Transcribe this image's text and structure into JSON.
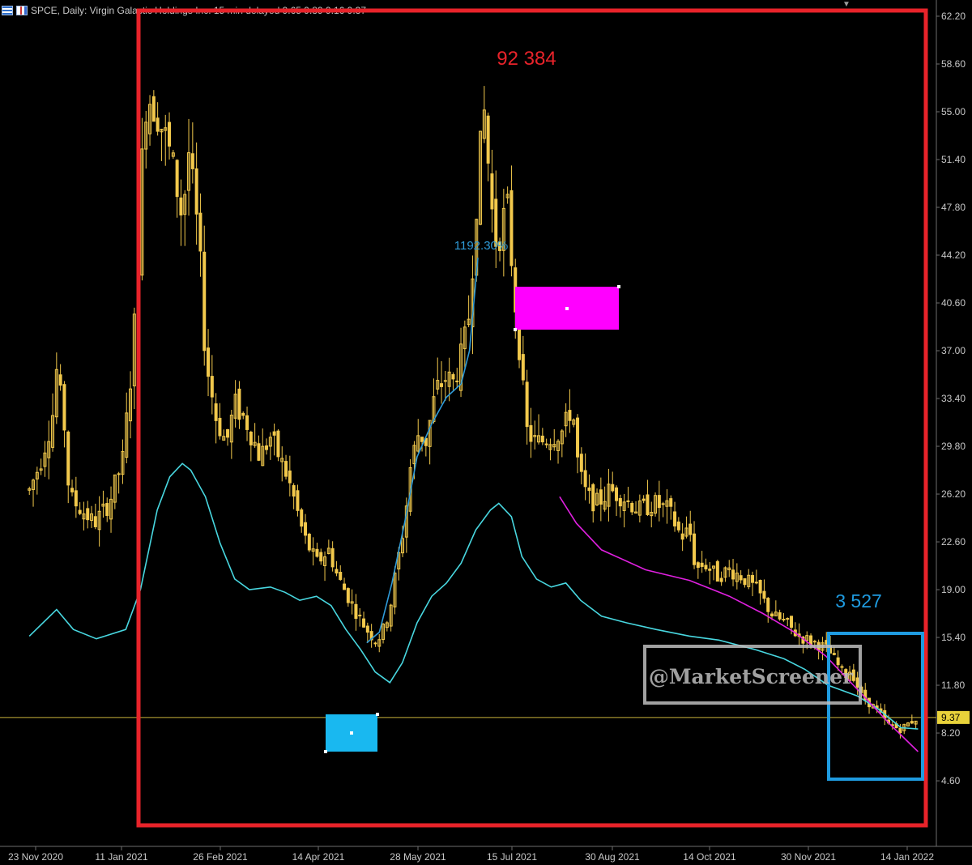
{
  "header": {
    "title": "SPCE, Daily:  Virgin Galactic Holdings Inc. 15 min delayed  9.65 9.89 9.16 9.37"
  },
  "colors": {
    "background": "#000000",
    "candle": "#f2c94c",
    "cyan_line": "#48d7e0",
    "blue_line": "#2f9bd8",
    "magenta_line": "#e020e0",
    "red_box": "#e8232a",
    "blue_box": "#1f9be0",
    "magenta_rect": "#ff00ff",
    "cyan_rect": "#19b8f0",
    "price_line": "#c9b23a",
    "axis_text": "#c8c8c8",
    "watermark": "#bdbdbd"
  },
  "annotations": {
    "red_box_label": "92 384",
    "blue_box_label": "3 527",
    "percent_label": "1192.30%",
    "watermark": "@MarketScreener"
  },
  "chart_data": {
    "type": "candlestick",
    "title": "SPCE, Daily",
    "xlabel": "",
    "ylabel": "",
    "ylim": [
      3.2,
      62.2
    ],
    "grid": false,
    "y_ticks": [
      "62.20",
      "58.60",
      "55.00",
      "51.40",
      "47.80",
      "44.20",
      "40.60",
      "37.00",
      "33.40",
      "29.80",
      "26.20",
      "22.60",
      "19.00",
      "15.40",
      "11.80",
      "8.20",
      "4.60"
    ],
    "x_ticks": [
      "23 Nov 2020",
      "11 Jan 2021",
      "26 Feb 2021",
      "14 Apr 2021",
      "28 May 2021",
      "15 Jul 2021",
      "30 Aug 2021",
      "14 Oct 2021",
      "30 Nov 2021",
      "14 Jan 2022"
    ],
    "last_price": "9.37",
    "close_path": [
      [
        "2020-11-20",
        26.5
      ],
      [
        "2020-11-25",
        28.5
      ],
      [
        "2020-12-01",
        32.0
      ],
      [
        "2020-12-03",
        35.5
      ],
      [
        "2020-12-07",
        31.0
      ],
      [
        "2020-12-09",
        26.0
      ],
      [
        "2020-12-15",
        25.0
      ],
      [
        "2020-12-21",
        24.0
      ],
      [
        "2020-12-28",
        25.5
      ],
      [
        "2021-01-04",
        29.0
      ],
      [
        "2021-01-06",
        33.0
      ],
      [
        "2021-01-08",
        36.0
      ],
      [
        "2021-01-11",
        44.0
      ],
      [
        "2021-01-13",
        52.0
      ],
      [
        "2021-01-15",
        56.5
      ],
      [
        "2021-01-20",
        55.0
      ],
      [
        "2021-01-25",
        52.5
      ],
      [
        "2021-01-28",
        50.5
      ],
      [
        "2021-02-01",
        47.0
      ],
      [
        "2021-02-04",
        52.0
      ],
      [
        "2021-02-09",
        45.0
      ],
      [
        "2021-02-12",
        36.5
      ],
      [
        "2021-02-17",
        32.0
      ],
      [
        "2021-02-22",
        30.0
      ],
      [
        "2021-02-26",
        33.0
      ],
      [
        "2021-03-04",
        31.5
      ],
      [
        "2021-03-10",
        29.0
      ],
      [
        "2021-03-15",
        30.5
      ],
      [
        "2021-03-22",
        28.0
      ],
      [
        "2021-03-26",
        26.0
      ],
      [
        "2021-03-31",
        23.0
      ],
      [
        "2021-04-06",
        21.0
      ],
      [
        "2021-04-12",
        22.0
      ],
      [
        "2021-04-16",
        20.0
      ],
      [
        "2021-04-21",
        18.5
      ],
      [
        "2021-04-26",
        17.0
      ],
      [
        "2021-04-30",
        16.0
      ],
      [
        "2021-05-04",
        15.2
      ],
      [
        "2021-05-07",
        15.6
      ],
      [
        "2021-05-11",
        17.5
      ],
      [
        "2021-05-14",
        20.5
      ],
      [
        "2021-05-18",
        24.0
      ],
      [
        "2021-05-21",
        28.5
      ],
      [
        "2021-05-25",
        31.0
      ],
      [
        "2021-05-28",
        30.0
      ],
      [
        "2021-06-02",
        34.0
      ],
      [
        "2021-06-07",
        35.0
      ],
      [
        "2021-06-10",
        34.5
      ],
      [
        "2021-06-15",
        37.0
      ],
      [
        "2021-06-18",
        40.0
      ],
      [
        "2021-06-22",
        50.0
      ],
      [
        "2021-06-25",
        55.0
      ],
      [
        "2021-06-29",
        47.0
      ],
      [
        "2021-07-01",
        45.0
      ],
      [
        "2021-07-06",
        48.0
      ],
      [
        "2021-07-09",
        42.0
      ],
      [
        "2021-07-12",
        37.0
      ],
      [
        "2021-07-15",
        31.0
      ],
      [
        "2021-07-20",
        30.0
      ],
      [
        "2021-07-26",
        30.5
      ],
      [
        "2021-08-02",
        31.0
      ],
      [
        "2021-08-06",
        33.0
      ],
      [
        "2021-08-09",
        28.0
      ],
      [
        "2021-08-13",
        26.0
      ],
      [
        "2021-08-18",
        25.5
      ],
      [
        "2021-08-24",
        26.5
      ],
      [
        "2021-08-30",
        26.0
      ],
      [
        "2021-09-07",
        25.0
      ],
      [
        "2021-09-14",
        25.5
      ],
      [
        "2021-09-21",
        25.0
      ],
      [
        "2021-09-27",
        23.0
      ],
      [
        "2021-10-01",
        23.5
      ],
      [
        "2021-10-04",
        20.5
      ],
      [
        "2021-10-08",
        21.0
      ],
      [
        "2021-10-14",
        20.0
      ],
      [
        "2021-10-20",
        20.5
      ],
      [
        "2021-10-26",
        20.0
      ],
      [
        "2021-11-02",
        19.0
      ],
      [
        "2021-11-10",
        17.0
      ],
      [
        "2021-11-16",
        16.5
      ],
      [
        "2021-11-22",
        15.5
      ],
      [
        "2021-11-30",
        15.0
      ],
      [
        "2021-12-06",
        14.5
      ],
      [
        "2021-12-10",
        13.5
      ],
      [
        "2021-12-14",
        12.5
      ],
      [
        "2021-12-17",
        13.0
      ],
      [
        "2021-12-22",
        11.0
      ],
      [
        "2021-12-29",
        10.0
      ],
      [
        "2022-01-04",
        8.8
      ],
      [
        "2022-01-10",
        8.5
      ],
      [
        "2022-01-14",
        9.0
      ],
      [
        "2022-01-18",
        9.37
      ]
    ],
    "series": [
      {
        "name": "",
        "style": "cyan",
        "points": [
          [
            "2020-11-20",
            15.5
          ],
          [
            "2020-12-03",
            17.5
          ],
          [
            "2020-12-11",
            16.0
          ],
          [
            "2020-12-22",
            15.3
          ],
          [
            "2021-01-05",
            16.0
          ],
          [
            "2021-01-12",
            19.0
          ],
          [
            "2021-01-20",
            25.0
          ],
          [
            "2021-01-26",
            27.5
          ],
          [
            "2021-02-01",
            28.5
          ],
          [
            "2021-02-05",
            28.0
          ],
          [
            "2021-02-12",
            26.0
          ],
          [
            "2021-02-19",
            22.5
          ],
          [
            "2021-02-26",
            19.8
          ],
          [
            "2021-03-05",
            19.0
          ],
          [
            "2021-03-15",
            19.2
          ],
          [
            "2021-03-22",
            18.8
          ],
          [
            "2021-03-29",
            18.2
          ],
          [
            "2021-04-06",
            18.5
          ],
          [
            "2021-04-13",
            17.8
          ],
          [
            "2021-04-20",
            16.0
          ],
          [
            "2021-04-27",
            14.5
          ],
          [
            "2021-05-04",
            12.8
          ],
          [
            "2021-05-11",
            12.0
          ],
          [
            "2021-05-17",
            13.5
          ],
          [
            "2021-05-24",
            16.5
          ],
          [
            "2021-05-31",
            18.5
          ],
          [
            "2021-06-07",
            19.5
          ],
          [
            "2021-06-14",
            21.0
          ],
          [
            "2021-06-21",
            23.5
          ],
          [
            "2021-06-28",
            25.0
          ],
          [
            "2021-07-02",
            25.5
          ],
          [
            "2021-07-08",
            24.5
          ],
          [
            "2021-07-13",
            21.5
          ],
          [
            "2021-07-20",
            19.8
          ],
          [
            "2021-07-27",
            19.2
          ],
          [
            "2021-08-03",
            19.5
          ],
          [
            "2021-08-10",
            18.2
          ],
          [
            "2021-08-20",
            17.0
          ],
          [
            "2021-09-01",
            16.5
          ],
          [
            "2021-09-15",
            16.0
          ],
          [
            "2021-10-01",
            15.5
          ],
          [
            "2021-10-15",
            15.2
          ],
          [
            "2021-11-01",
            14.5
          ],
          [
            "2021-11-15",
            13.8
          ],
          [
            "2021-11-25",
            13.0
          ],
          [
            "2021-12-06",
            11.8
          ],
          [
            "2021-12-20",
            11.0
          ],
          [
            "2021-12-30",
            10.0
          ],
          [
            "2022-01-10",
            8.6
          ],
          [
            "2022-01-18",
            8.5
          ]
        ]
      },
      {
        "name": "",
        "style": "blue",
        "points": [
          [
            "2021-04-30",
            15.0
          ],
          [
            "2021-05-06",
            15.8
          ],
          [
            "2021-05-12",
            19.5
          ],
          [
            "2021-05-18",
            24.0
          ],
          [
            "2021-05-24",
            29.0
          ],
          [
            "2021-05-31",
            31.5
          ],
          [
            "2021-06-07",
            33.5
          ],
          [
            "2021-06-14",
            34.5
          ],
          [
            "2021-06-18",
            37.0
          ],
          [
            "2021-06-22",
            44.0
          ]
        ]
      },
      {
        "name": "",
        "style": "magenta",
        "points": [
          [
            "2021-07-31",
            26.0
          ],
          [
            "2021-08-08",
            24.0
          ],
          [
            "2021-08-20",
            22.0
          ],
          [
            "2021-09-10",
            20.5
          ],
          [
            "2021-10-01",
            19.7
          ],
          [
            "2021-10-20",
            18.5
          ],
          [
            "2021-11-05",
            17.2
          ],
          [
            "2021-11-20",
            15.8
          ],
          [
            "2021-12-05",
            14.0
          ],
          [
            "2021-12-20",
            11.5
          ],
          [
            "2022-01-05",
            8.8
          ],
          [
            "2022-01-18",
            6.8
          ]
        ]
      }
    ]
  }
}
